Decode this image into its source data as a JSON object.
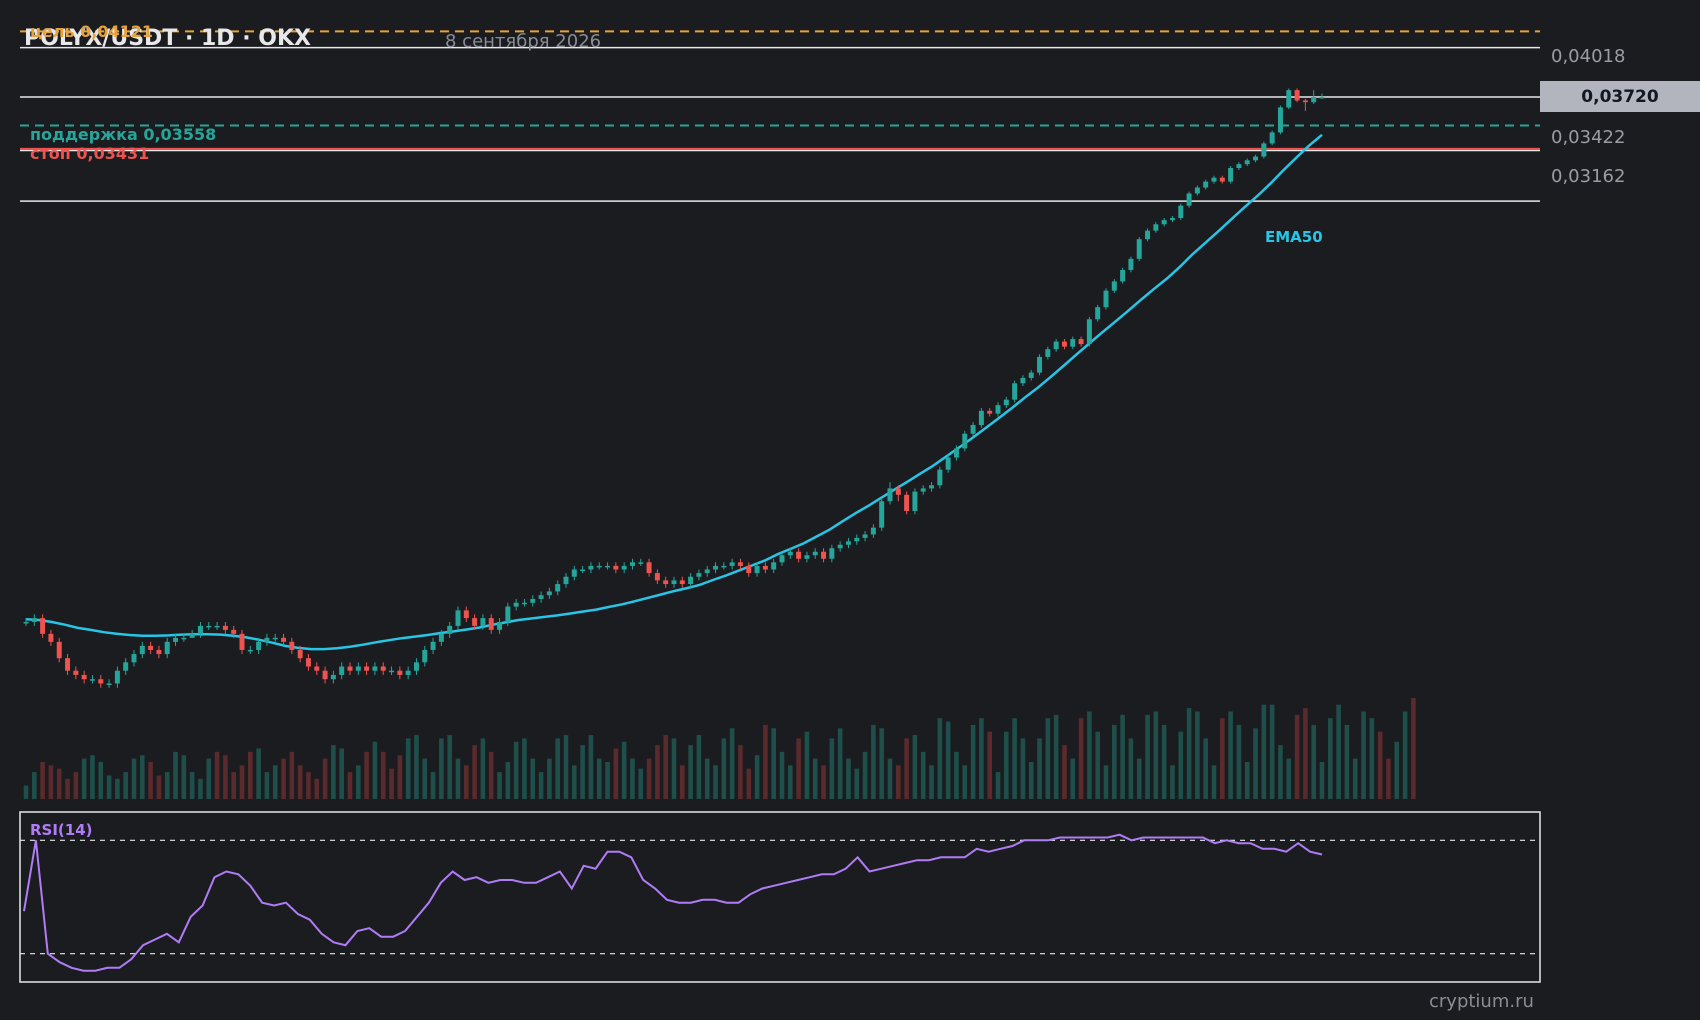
{
  "header": {
    "title": "POLYX/USDT · 1D · OKX",
    "date": "8 сентября 2026",
    "watermark": "cryptium.ru"
  },
  "levels": {
    "target_label": "цель 0,04121",
    "support_label": "поддержка 0,03558",
    "stop_label": "стоп 0,03431"
  },
  "axis": {
    "ticks": [
      "0,04018",
      "0,03422",
      "0,03162"
    ],
    "current_price": "0,03720"
  },
  "indicators": {
    "ema_label": "EMA50",
    "rsi_label": "RSI(14)"
  },
  "colors": {
    "background": "#1b1c20",
    "up": "#26a69a",
    "down": "#ef5350",
    "ema": "#29c5e6",
    "rsi": "#b07cf5",
    "target": "#e6a23c",
    "support": "#26a69a",
    "stop": "#ef5350"
  },
  "chart_data": {
    "type": "candlestick",
    "symbol": "POLYX/USDT",
    "interval": "1D",
    "exchange": "OKX",
    "ylog": true,
    "levels": {
      "target": 0.04121,
      "support": 0.03558,
      "stop": 0.03431,
      "current": 0.0372
    },
    "horizontal_lines": [
      0.04018,
      0.0372,
      0.03422,
      0.03162
    ],
    "candles": [
      [
        0.0164,
        0.0164,
        0.0165,
        0.0163
      ],
      [
        0.0164,
        0.0165,
        0.0166,
        0.0163
      ],
      [
        0.0165,
        0.0161,
        0.0166,
        0.016
      ],
      [
        0.0161,
        0.0159,
        0.0162,
        0.0158
      ],
      [
        0.0159,
        0.0155,
        0.016,
        0.0154
      ],
      [
        0.0155,
        0.0152,
        0.0156,
        0.0151
      ],
      [
        0.0152,
        0.0151,
        0.0153,
        0.015
      ],
      [
        0.0151,
        0.015,
        0.0152,
        0.0149
      ],
      [
        0.015,
        0.015,
        0.0151,
        0.0149
      ],
      [
        0.015,
        0.0149,
        0.0151,
        0.0148
      ],
      [
        0.0149,
        0.0149,
        0.015,
        0.0148
      ],
      [
        0.0149,
        0.0152,
        0.0153,
        0.0148
      ],
      [
        0.0152,
        0.0154,
        0.0155,
        0.0151
      ],
      [
        0.0154,
        0.0156,
        0.0157,
        0.0153
      ],
      [
        0.0156,
        0.0158,
        0.0159,
        0.0155
      ],
      [
        0.0158,
        0.0157,
        0.0159,
        0.0156
      ],
      [
        0.0157,
        0.0156,
        0.0158,
        0.0155
      ],
      [
        0.0156,
        0.0159,
        0.016,
        0.0155
      ],
      [
        0.0159,
        0.016,
        0.0161,
        0.0158
      ],
      [
        0.016,
        0.016,
        0.0161,
        0.0159
      ],
      [
        0.016,
        0.0161,
        0.0162,
        0.016
      ],
      [
        0.0161,
        0.0163,
        0.0164,
        0.016
      ],
      [
        0.0163,
        0.0163,
        0.0164,
        0.0162
      ],
      [
        0.0163,
        0.0163,
        0.0164,
        0.0162
      ],
      [
        0.0163,
        0.0162,
        0.0164,
        0.0161
      ],
      [
        0.0162,
        0.0161,
        0.0163,
        0.016
      ],
      [
        0.0161,
        0.0157,
        0.0162,
        0.0156
      ],
      [
        0.0157,
        0.0157,
        0.0158,
        0.0156
      ],
      [
        0.0157,
        0.0159,
        0.016,
        0.0156
      ],
      [
        0.0159,
        0.016,
        0.0161,
        0.0158
      ],
      [
        0.016,
        0.016,
        0.0161,
        0.0159
      ],
      [
        0.016,
        0.0159,
        0.0161,
        0.0158
      ],
      [
        0.0159,
        0.0157,
        0.016,
        0.0156
      ],
      [
        0.0157,
        0.0155,
        0.0158,
        0.0154
      ],
      [
        0.0155,
        0.0153,
        0.0156,
        0.0152
      ],
      [
        0.0153,
        0.0152,
        0.0154,
        0.0151
      ],
      [
        0.0152,
        0.015,
        0.0153,
        0.0149
      ],
      [
        0.015,
        0.0151,
        0.0152,
        0.0149
      ],
      [
        0.0151,
        0.0153,
        0.0154,
        0.015
      ],
      [
        0.0153,
        0.0152,
        0.0154,
        0.0151
      ],
      [
        0.0152,
        0.0153,
        0.0154,
        0.0151
      ],
      [
        0.0153,
        0.0152,
        0.0154,
        0.0151
      ],
      [
        0.0152,
        0.0153,
        0.0154,
        0.0151
      ],
      [
        0.0153,
        0.0152,
        0.0154,
        0.0151
      ],
      [
        0.0152,
        0.0152,
        0.0153,
        0.0151
      ],
      [
        0.0152,
        0.0151,
        0.0153,
        0.015
      ],
      [
        0.0151,
        0.0152,
        0.0153,
        0.015
      ],
      [
        0.0152,
        0.0154,
        0.0155,
        0.0151
      ],
      [
        0.0154,
        0.0157,
        0.0158,
        0.0153
      ],
      [
        0.0157,
        0.0159,
        0.016,
        0.0156
      ],
      [
        0.0159,
        0.0161,
        0.0162,
        0.0158
      ],
      [
        0.0161,
        0.0163,
        0.0164,
        0.016
      ],
      [
        0.0163,
        0.0167,
        0.0168,
        0.0162
      ],
      [
        0.0167,
        0.0165,
        0.0168,
        0.0164
      ],
      [
        0.0165,
        0.0163,
        0.0166,
        0.0162
      ],
      [
        0.0163,
        0.0165,
        0.0166,
        0.0162
      ],
      [
        0.0165,
        0.0162,
        0.0166,
        0.0161
      ],
      [
        0.0162,
        0.0164,
        0.0165,
        0.0161
      ],
      [
        0.0164,
        0.0168,
        0.0169,
        0.0163
      ],
      [
        0.0168,
        0.0169,
        0.017,
        0.0167
      ],
      [
        0.0169,
        0.0169,
        0.017,
        0.0168
      ],
      [
        0.0169,
        0.017,
        0.0171,
        0.0168
      ],
      [
        0.017,
        0.0171,
        0.0172,
        0.0169
      ],
      [
        0.0171,
        0.0172,
        0.0173,
        0.017
      ],
      [
        0.0172,
        0.0174,
        0.0175,
        0.0171
      ],
      [
        0.0174,
        0.0176,
        0.0177,
        0.0173
      ],
      [
        0.0176,
        0.0178,
        0.0179,
        0.0175
      ],
      [
        0.0178,
        0.0178,
        0.0179,
        0.0177
      ],
      [
        0.0178,
        0.0179,
        0.018,
        0.0177
      ],
      [
        0.0179,
        0.0179,
        0.018,
        0.0178
      ],
      [
        0.0179,
        0.0179,
        0.018,
        0.0178
      ],
      [
        0.0179,
        0.0178,
        0.018,
        0.0177
      ],
      [
        0.0178,
        0.0179,
        0.018,
        0.0177
      ],
      [
        0.0179,
        0.018,
        0.0181,
        0.0178
      ],
      [
        0.018,
        0.018,
        0.0181,
        0.0179
      ],
      [
        0.018,
        0.0177,
        0.0181,
        0.0176
      ],
      [
        0.0177,
        0.0175,
        0.0178,
        0.0174
      ],
      [
        0.0175,
        0.0174,
        0.0176,
        0.0173
      ],
      [
        0.0174,
        0.0175,
        0.0176,
        0.0173
      ],
      [
        0.0175,
        0.0174,
        0.0176,
        0.0173
      ],
      [
        0.0174,
        0.0176,
        0.0177,
        0.0173
      ],
      [
        0.0176,
        0.0177,
        0.0178,
        0.0175
      ],
      [
        0.0177,
        0.0178,
        0.0179,
        0.0176
      ],
      [
        0.0178,
        0.0179,
        0.018,
        0.0177
      ],
      [
        0.0179,
        0.0179,
        0.018,
        0.0178
      ],
      [
        0.0179,
        0.018,
        0.0181,
        0.0178
      ],
      [
        0.018,
        0.0179,
        0.0181,
        0.0178
      ],
      [
        0.0179,
        0.0177,
        0.018,
        0.0176
      ],
      [
        0.0177,
        0.0179,
        0.018,
        0.0176
      ],
      [
        0.0179,
        0.0178,
        0.018,
        0.0177
      ],
      [
        0.0178,
        0.018,
        0.0181,
        0.0177
      ],
      [
        0.018,
        0.0182,
        0.0183,
        0.0179
      ],
      [
        0.0182,
        0.0183,
        0.0184,
        0.0181
      ],
      [
        0.0183,
        0.0181,
        0.0184,
        0.018
      ],
      [
        0.0181,
        0.0182,
        0.0183,
        0.018
      ],
      [
        0.0182,
        0.0183,
        0.0184,
        0.0181
      ],
      [
        0.0183,
        0.0181,
        0.0184,
        0.018
      ],
      [
        0.0181,
        0.0184,
        0.0185,
        0.018
      ],
      [
        0.0184,
        0.0185,
        0.0186,
        0.0183
      ],
      [
        0.0185,
        0.0186,
        0.0187,
        0.0184
      ],
      [
        0.0186,
        0.0187,
        0.0188,
        0.0185
      ],
      [
        0.0187,
        0.0188,
        0.0189,
        0.0186
      ],
      [
        0.0188,
        0.019,
        0.0191,
        0.0187
      ],
      [
        0.019,
        0.0198,
        0.0199,
        0.0189
      ],
      [
        0.0198,
        0.0202,
        0.0204,
        0.0197
      ],
      [
        0.0202,
        0.02,
        0.0203,
        0.0198
      ],
      [
        0.02,
        0.0195,
        0.0201,
        0.0194
      ],
      [
        0.0195,
        0.0201,
        0.0202,
        0.0194
      ],
      [
        0.0201,
        0.0202,
        0.0203,
        0.02
      ],
      [
        0.0202,
        0.0203,
        0.0204,
        0.0201
      ],
      [
        0.0203,
        0.0208,
        0.0209,
        0.0202
      ],
      [
        0.0208,
        0.0212,
        0.0213,
        0.0207
      ],
      [
        0.0212,
        0.0215,
        0.0216,
        0.0211
      ],
      [
        0.0215,
        0.022,
        0.0221,
        0.0214
      ],
      [
        0.022,
        0.0223,
        0.0224,
        0.0219
      ],
      [
        0.0223,
        0.0228,
        0.0229,
        0.0222
      ],
      [
        0.0228,
        0.0227,
        0.0229,
        0.0226
      ],
      [
        0.0227,
        0.023,
        0.0231,
        0.0226
      ],
      [
        0.023,
        0.0232,
        0.0233,
        0.0229
      ],
      [
        0.0232,
        0.0238,
        0.0239,
        0.0231
      ],
      [
        0.0238,
        0.024,
        0.0241,
        0.0237
      ],
      [
        0.024,
        0.0242,
        0.0243,
        0.0239
      ],
      [
        0.0242,
        0.0248,
        0.0249,
        0.0241
      ],
      [
        0.0248,
        0.0251,
        0.0252,
        0.0247
      ],
      [
        0.0251,
        0.0254,
        0.0255,
        0.025
      ],
      [
        0.0254,
        0.0252,
        0.0255,
        0.0251
      ],
      [
        0.0252,
        0.0255,
        0.0256,
        0.0251
      ],
      [
        0.0255,
        0.0253,
        0.0256,
        0.0252
      ],
      [
        0.0253,
        0.0263,
        0.0264,
        0.0252
      ],
      [
        0.0263,
        0.0268,
        0.0269,
        0.0262
      ],
      [
        0.0268,
        0.0275,
        0.0276,
        0.0267
      ],
      [
        0.0275,
        0.0279,
        0.028,
        0.0274
      ],
      [
        0.0279,
        0.0284,
        0.0285,
        0.0278
      ],
      [
        0.0284,
        0.0289,
        0.029,
        0.0283
      ],
      [
        0.0289,
        0.0298,
        0.0299,
        0.0288
      ],
      [
        0.0298,
        0.0302,
        0.0303,
        0.0297
      ],
      [
        0.0302,
        0.0305,
        0.0306,
        0.0301
      ],
      [
        0.0305,
        0.0307,
        0.0308,
        0.0304
      ],
      [
        0.0307,
        0.0308,
        0.0309,
        0.0306
      ],
      [
        0.0308,
        0.0314,
        0.0315,
        0.0307
      ],
      [
        0.0314,
        0.032,
        0.0321,
        0.0313
      ],
      [
        0.032,
        0.0323,
        0.0324,
        0.0319
      ],
      [
        0.0323,
        0.0326,
        0.0327,
        0.0322
      ],
      [
        0.0326,
        0.0328,
        0.0329,
        0.0325
      ],
      [
        0.0328,
        0.0326,
        0.0329,
        0.0325
      ],
      [
        0.0326,
        0.0333,
        0.0334,
        0.0325
      ],
      [
        0.0333,
        0.0335,
        0.0336,
        0.0332
      ],
      [
        0.0335,
        0.0337,
        0.0338,
        0.0334
      ],
      [
        0.0337,
        0.0339,
        0.034,
        0.0336
      ],
      [
        0.0339,
        0.0346,
        0.0347,
        0.0338
      ],
      [
        0.0346,
        0.0352,
        0.0353,
        0.0345
      ],
      [
        0.0352,
        0.0366,
        0.0367,
        0.0351
      ],
      [
        0.0366,
        0.0376,
        0.0377,
        0.0365
      ],
      [
        0.0376,
        0.037,
        0.0377,
        0.0369
      ],
      [
        0.037,
        0.0369,
        0.0371,
        0.0364
      ],
      [
        0.0369,
        0.0372,
        0.0376,
        0.0368
      ],
      [
        0.0372,
        0.0372,
        0.0374,
        0.0371
      ]
    ],
    "volume": [
      2,
      4,
      5.5,
      5,
      4.5,
      3,
      4,
      6,
      6.5,
      5.5,
      3.5,
      3,
      4,
      6,
      6.5,
      5.5,
      3.5,
      4,
      7,
      6.5,
      4,
      3,
      6,
      7,
      6.5,
      4,
      5,
      7,
      7.5,
      4,
      5,
      6,
      7,
      5,
      4,
      3,
      6,
      8,
      7.5,
      4,
      5,
      7,
      8.5,
      7,
      4.5,
      6.5,
      9,
      9.5,
      6,
      4,
      9,
      9.5,
      6,
      5,
      8,
      9,
      7,
      4,
      5.5,
      8.5,
      9,
      6,
      4,
      6,
      9,
      9.5,
      5,
      8,
      9.5,
      6,
      5.5,
      7.5,
      8.5,
      6,
      4.5,
      6,
      8,
      9.5,
      9,
      5,
      8,
      9.5,
      6,
      5,
      9,
      10.5,
      8,
      4.5,
      6.5,
      11,
      10.5,
      7,
      5,
      9,
      10,
      6,
      5,
      9,
      10.5,
      6,
      4.5,
      7,
      11,
      10.5,
      6,
      5,
      9,
      9.5,
      7,
      5,
      12,
      11.5,
      7,
      5,
      11,
      12,
      10,
      4,
      10,
      12,
      9,
      5.5,
      9,
      12,
      12.5,
      8,
      6,
      12,
      13,
      10,
      5,
      11,
      12.5,
      9,
      6,
      12.5,
      13,
      11,
      5,
      10,
      13.5,
      13,
      9,
      5,
      12,
      13,
      11,
      5.5,
      10.5,
      14,
      14,
      8,
      6,
      12.5,
      13.5,
      11,
      5.5,
      12,
      14,
      11,
      6,
      13,
      12,
      10,
      6,
      8.5,
      13,
      15
    ],
    "volume_up": [
      1,
      1,
      0,
      0,
      0,
      0,
      0,
      1,
      1,
      1,
      1,
      1,
      1,
      1,
      1,
      0,
      0,
      1,
      1,
      1,
      1,
      1,
      1,
      0,
      0,
      0,
      0,
      0,
      1,
      1,
      1,
      0,
      0,
      0,
      0,
      0,
      0,
      1,
      1,
      0,
      1,
      0,
      1,
      0,
      0,
      0,
      1,
      1,
      1,
      1,
      1,
      1,
      1,
      0,
      0,
      1,
      0,
      1,
      1,
      1,
      1,
      1,
      1,
      1,
      1,
      1,
      1,
      1,
      1,
      1,
      1,
      0,
      1,
      1,
      1,
      0,
      0,
      0,
      1,
      0,
      1,
      1,
      1,
      1,
      1,
      1,
      0,
      0,
      1,
      0,
      1,
      1,
      1,
      0,
      1,
      1,
      0,
      1,
      1,
      1,
      1,
      1,
      1,
      1,
      1,
      0,
      0,
      1,
      1,
      1,
      1,
      1,
      1,
      1,
      1,
      1,
      0,
      1,
      1,
      1,
      1,
      1,
      1,
      1,
      1,
      0,
      1,
      0,
      1,
      1,
      1,
      1,
      1,
      1,
      1,
      1,
      1,
      1,
      1,
      1,
      1,
      1,
      1,
      1,
      0,
      1,
      1,
      1,
      1,
      1,
      1,
      1,
      1,
      0,
      0,
      1,
      1,
      1,
      1,
      1,
      1,
      1,
      1,
      0,
      0,
      1,
      1
    ],
    "ema50": [
      0.01647,
      0.01645,
      0.0164,
      0.01633,
      0.01625,
      0.0162,
      0.01614,
      0.0161,
      0.01607,
      0.01605,
      0.01605,
      0.01606,
      0.01608,
      0.01609,
      0.01609,
      0.01608,
      0.01605,
      0.01601,
      0.01595,
      0.01588,
      0.0158,
      0.01575,
      0.01572,
      0.01572,
      0.01574,
      0.01578,
      0.01583,
      0.01589,
      0.01594,
      0.01599,
      0.01603,
      0.01607,
      0.01612,
      0.01616,
      0.01621,
      0.01626,
      0.01633,
      0.01639,
      0.01645,
      0.01649,
      0.01653,
      0.01657,
      0.01662,
      0.01667,
      0.01672,
      0.01679,
      0.01686,
      0.01694,
      0.01703,
      0.01712,
      0.01721,
      0.01729,
      0.01738,
      0.01751,
      0.01763,
      0.01777,
      0.01791,
      0.01805,
      0.01823,
      0.01838,
      0.01854,
      0.01874,
      0.01894,
      0.01919,
      0.01943,
      0.01966,
      0.01991,
      0.02016,
      0.02041,
      0.02067,
      0.02093,
      0.02123,
      0.02153,
      0.02185,
      0.02218,
      0.02252,
      0.02287,
      0.02325,
      0.02361,
      0.02401,
      0.02443,
      0.02487,
      0.02531,
      0.02575,
      0.02618,
      0.02663,
      0.0271,
      0.02756,
      0.02801,
      0.02852,
      0.0291,
      0.02963,
      0.03017,
      0.03074,
      0.03131,
      0.03187,
      0.03249,
      0.03317,
      0.03383,
      0.03448,
      0.03507
    ],
    "rsi14": [
      45,
      70,
      30,
      27,
      25,
      24,
      24,
      25,
      25,
      28,
      33,
      35,
      37,
      34,
      43,
      47,
      57,
      59,
      58,
      54,
      48,
      47,
      48,
      44,
      42,
      37,
      34,
      33,
      38,
      39,
      36,
      36,
      38,
      43,
      48,
      55,
      59,
      56,
      57,
      55,
      56,
      56,
      55,
      55,
      57,
      59,
      53,
      61,
      60,
      66,
      66,
      64,
      56,
      53,
      49,
      48,
      48,
      49,
      49,
      48,
      48,
      51,
      53,
      54,
      55,
      56,
      57,
      58,
      58,
      60,
      64,
      59,
      60,
      61,
      62,
      63,
      63,
      64,
      64,
      64,
      67,
      66,
      67,
      68,
      70,
      70,
      70,
      71,
      71,
      71,
      71,
      71,
      72,
      70,
      71,
      71,
      71,
      71,
      71,
      71,
      69,
      70,
      69,
      69,
      67,
      67,
      66,
      69,
      66,
      65
    ],
    "rsi_levels": [
      70,
      30
    ],
    "rsi_ylim": [
      20,
      80
    ]
  }
}
